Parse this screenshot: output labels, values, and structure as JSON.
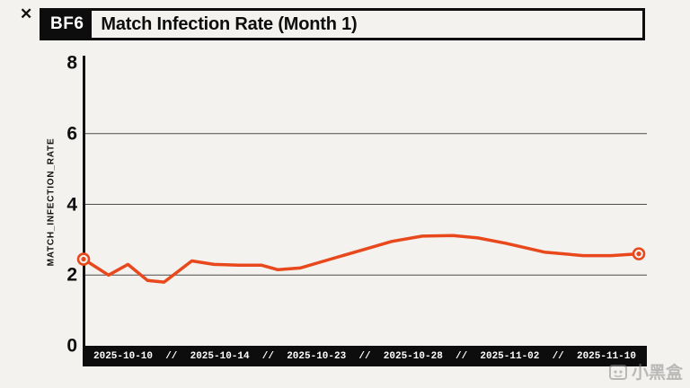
{
  "decorations": {
    "corner_mark": "✕"
  },
  "header": {
    "badge": "BF6",
    "title": "Match Infection Rate (Month 1)"
  },
  "chart_data": {
    "type": "line",
    "title": "BF6 Match Infection Rate (Month 1)",
    "ylabel": "MATCH_INFECTION_RATE",
    "xlabel": "",
    "ylim": [
      0,
      8
    ],
    "yticks": [
      8,
      6,
      4,
      2,
      0
    ],
    "gridline_values": [
      2,
      4,
      6
    ],
    "grid": "horizontal-only",
    "legend": "none",
    "x_axis_labels": [
      "2025-10-10",
      "2025-10-14",
      "2025-10-23",
      "2025-10-28",
      "2025-11-02",
      "2025-11-10"
    ],
    "x_axis_separator": "//",
    "line_color": "#e8481c",
    "background_color": "#f3f2ef",
    "endpoint_markers": true,
    "series": [
      {
        "name": "MATCH_INFECTION_RATE",
        "x_frac": [
          0,
          0.045,
          0.08,
          0.115,
          0.145,
          0.195,
          0.235,
          0.28,
          0.32,
          0.35,
          0.39,
          0.445,
          0.5,
          0.555,
          0.61,
          0.665,
          0.71,
          0.76,
          0.83,
          0.9,
          0.95,
          1.0
        ],
        "values": [
          2.45,
          2.0,
          2.3,
          1.85,
          1.8,
          2.4,
          2.3,
          2.28,
          2.28,
          2.15,
          2.2,
          2.45,
          2.7,
          2.95,
          3.1,
          3.12,
          3.05,
          2.9,
          2.65,
          2.55,
          2.55,
          2.6
        ]
      }
    ]
  },
  "watermark": {
    "text": "小黑盒"
  }
}
